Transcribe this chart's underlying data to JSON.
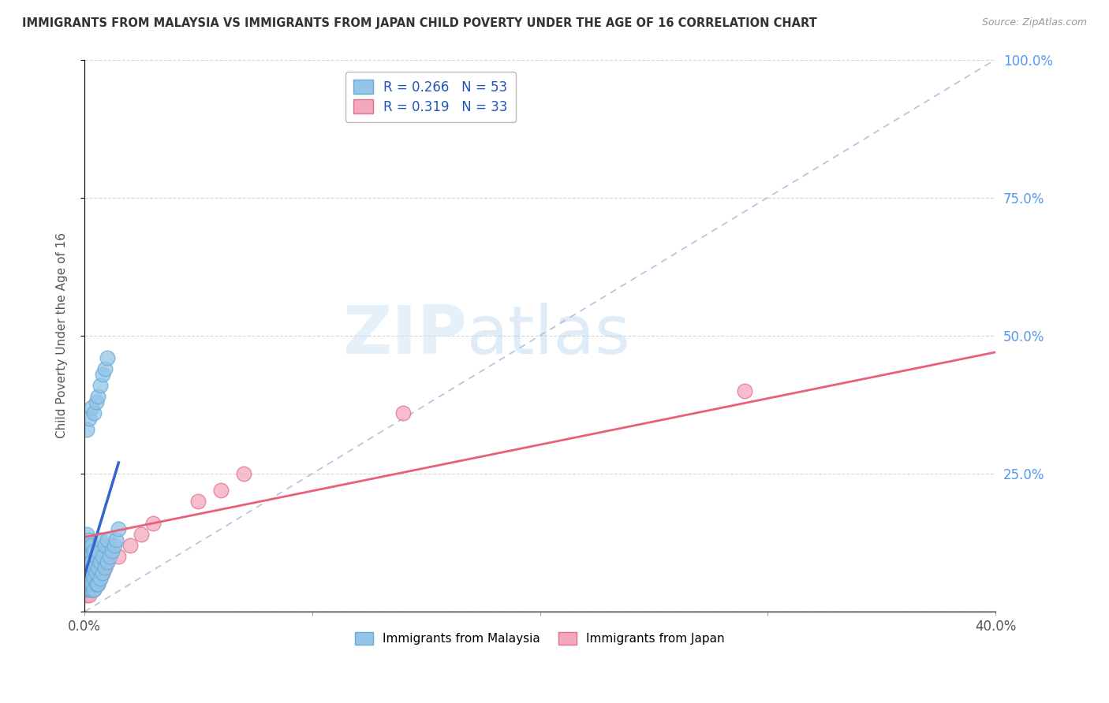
{
  "title": "IMMIGRANTS FROM MALAYSIA VS IMMIGRANTS FROM JAPAN CHILD POVERTY UNDER THE AGE OF 16 CORRELATION CHART",
  "source": "Source: ZipAtlas.com",
  "ylabel": "Child Poverty Under the Age of 16",
  "xlim": [
    0.0,
    0.4
  ],
  "ylim": [
    0.0,
    1.0
  ],
  "xticks": [
    0.0,
    0.1,
    0.2,
    0.3,
    0.4
  ],
  "xticklabels": [
    "0.0%",
    "",
    "",
    "",
    "40.0%"
  ],
  "yticks": [
    0.0,
    0.25,
    0.5,
    0.75,
    1.0
  ],
  "yticklabels_right": [
    "",
    "25.0%",
    "50.0%",
    "75.0%",
    "100.0%"
  ],
  "malaysia_R": 0.266,
  "malaysia_N": 53,
  "japan_R": 0.319,
  "japan_N": 33,
  "malaysia_color": "#92C5E8",
  "malaysia_edge": "#6AAAD4",
  "japan_color": "#F4A8BC",
  "japan_edge": "#E07090",
  "malaysia_line_color": "#3366CC",
  "japan_line_color": "#E8607A",
  "diag_color": "#AABBDD",
  "legend_label_malaysia": "Immigrants from Malaysia",
  "legend_label_japan": "Immigrants from Japan",
  "watermark_zip": "ZIP",
  "watermark_atlas": "atlas",
  "background_color": "#FFFFFF",
  "malaysia_scatter_x": [
    0.001,
    0.001,
    0.001,
    0.001,
    0.001,
    0.001,
    0.001,
    0.001,
    0.002,
    0.002,
    0.002,
    0.002,
    0.002,
    0.002,
    0.003,
    0.003,
    0.003,
    0.003,
    0.003,
    0.004,
    0.004,
    0.004,
    0.004,
    0.005,
    0.005,
    0.005,
    0.006,
    0.006,
    0.006,
    0.007,
    0.007,
    0.007,
    0.008,
    0.008,
    0.009,
    0.009,
    0.01,
    0.01,
    0.011,
    0.012,
    0.013,
    0.014,
    0.015,
    0.001,
    0.002,
    0.003,
    0.004,
    0.005,
    0.006,
    0.007,
    0.008,
    0.009,
    0.01
  ],
  "malaysia_scatter_y": [
    0.04,
    0.05,
    0.06,
    0.07,
    0.08,
    0.1,
    0.12,
    0.14,
    0.04,
    0.05,
    0.06,
    0.08,
    0.1,
    0.13,
    0.04,
    0.05,
    0.07,
    0.09,
    0.12,
    0.04,
    0.06,
    0.08,
    0.11,
    0.05,
    0.07,
    0.1,
    0.05,
    0.08,
    0.11,
    0.06,
    0.09,
    0.13,
    0.07,
    0.1,
    0.08,
    0.12,
    0.09,
    0.13,
    0.1,
    0.11,
    0.12,
    0.13,
    0.15,
    0.33,
    0.35,
    0.37,
    0.36,
    0.38,
    0.39,
    0.41,
    0.43,
    0.44,
    0.46
  ],
  "japan_scatter_x": [
    0.001,
    0.001,
    0.001,
    0.001,
    0.001,
    0.002,
    0.002,
    0.002,
    0.002,
    0.003,
    0.003,
    0.003,
    0.004,
    0.004,
    0.004,
    0.005,
    0.005,
    0.006,
    0.006,
    0.007,
    0.007,
    0.008,
    0.009,
    0.01,
    0.015,
    0.02,
    0.025,
    0.03,
    0.05,
    0.06,
    0.07,
    0.29,
    0.14
  ],
  "japan_scatter_y": [
    0.03,
    0.05,
    0.07,
    0.09,
    0.11,
    0.03,
    0.05,
    0.07,
    0.09,
    0.04,
    0.06,
    0.08,
    0.04,
    0.06,
    0.08,
    0.05,
    0.07,
    0.05,
    0.08,
    0.06,
    0.09,
    0.07,
    0.08,
    0.09,
    0.1,
    0.12,
    0.14,
    0.16,
    0.2,
    0.22,
    0.25,
    0.4,
    0.36
  ],
  "mal_trend_x": [
    0.0,
    0.015
  ],
  "mal_trend_y": [
    0.065,
    0.27
  ],
  "jap_trend_x": [
    0.0,
    0.4
  ],
  "jap_trend_y": [
    0.135,
    0.47
  ]
}
